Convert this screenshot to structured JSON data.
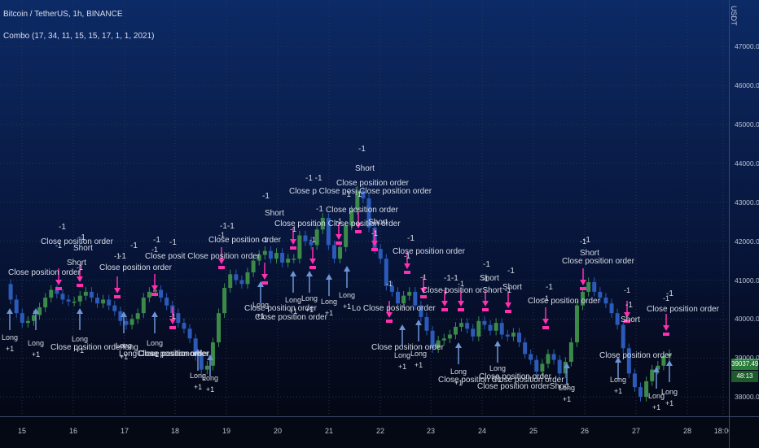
{
  "symbol": {
    "title": "Bitcoin / TetherUS, 1h, BINANCE"
  },
  "strategy": {
    "title": "Combo (17, 34, 11, 15, 15, 17, 1, 1, 2021)"
  },
  "price_axis": {
    "unit": "USDT",
    "ticks": [
      "47000.00",
      "46000.00",
      "45000.00",
      "44000.00",
      "43000.00",
      "42000.00",
      "41000.00",
      "40000.00",
      "39000.00",
      "38000.00"
    ],
    "last_price": "39037.49",
    "countdown": "48:13"
  },
  "time_axis": {
    "ticks": [
      "15",
      "16",
      "17",
      "18",
      "19",
      "20",
      "21",
      "22",
      "23",
      "24",
      "25",
      "26",
      "27",
      "28",
      "18:00"
    ]
  },
  "colors": {
    "long": "#6d95d6",
    "short": "#ff2fb0",
    "up_candle": "#3c8a4a",
    "down_candle": "#2b5ab8",
    "grid": "#2a3553"
  },
  "chart_data": {
    "type": "line",
    "x_unit": "hourly bars, Jan 14 – Jan 28",
    "y_range": [
      37500,
      48200
    ],
    "price": [
      40900,
      40500,
      40150,
      39900,
      39950,
      40100,
      40300,
      40550,
      40750,
      40650,
      40500,
      40450,
      40450,
      40600,
      40700,
      40550,
      40400,
      40500,
      40350,
      40200,
      39950,
      39850,
      40000,
      40150,
      40550,
      40700,
      40750,
      40550,
      40350,
      40150,
      39900,
      39750,
      39500,
      39050,
      38700,
      38800,
      39400,
      40150,
      40800,
      41150,
      41000,
      40900,
      41200,
      41500,
      41650,
      41750,
      41550,
      41700,
      41450,
      41550,
      41550,
      42150,
      42000,
      41900,
      42300,
      42600,
      41900,
      41550,
      41850,
      42400,
      42800,
      43300,
      43100,
      42350,
      41800,
      41550,
      40850,
      40700,
      40400,
      40600,
      40700,
      40350,
      40050,
      39700,
      39250,
      39450,
      39500,
      39600,
      39800,
      39900,
      39750,
      39550,
      39950,
      39850,
      39700,
      39900,
      39600,
      39550,
      39650,
      39400,
      39100,
      38950,
      38650,
      38850,
      39100,
      38950,
      38600,
      38900,
      39400,
      40350,
      40700,
      40950,
      40700,
      40550,
      40400,
      40150,
      39850,
      39250,
      38600,
      38250,
      38000,
      38400,
      38700,
      38800,
      39050,
      39100
    ]
  },
  "trades": [
    {
      "label": "Short",
      "qty": "-1",
      "close_text": "Close position order"
    },
    {
      "label": "Long",
      "qty": "+1",
      "close_text": "Close position order"
    }
  ],
  "annotations": {
    "short_label": "Short",
    "long_label": "Long",
    "close_label": "Close position order",
    "minus_one": "-1",
    "plus_one": "+1",
    "long_order": "Close position orderlong",
    "order_position": "Close positionorder",
    "long_position": "LongClose position order",
    "double_minus": "-1-1",
    "double_minus_spaced": "-1 -1",
    "mashed_order": "Close posit Close position order",
    "mashed_positions": "Close position Close position order",
    "triple_close": "Close p Close posi Close position order",
    "close_short": "Close position orShort",
    "order_short": "Close position orderShort",
    "long_close_mash": "Lo Close position order"
  }
}
